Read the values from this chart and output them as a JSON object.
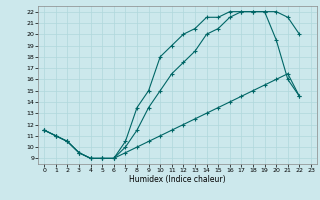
{
  "xlabel": "Humidex (Indice chaleur)",
  "bg_color": "#cce8ec",
  "line_color": "#006666",
  "xlim": [
    -0.5,
    23.5
  ],
  "ylim": [
    8.5,
    22.5
  ],
  "xticks": [
    0,
    1,
    2,
    3,
    4,
    5,
    6,
    7,
    8,
    9,
    10,
    11,
    12,
    13,
    14,
    15,
    16,
    17,
    18,
    19,
    20,
    21,
    22,
    23
  ],
  "yticks": [
    9,
    10,
    11,
    12,
    13,
    14,
    15,
    16,
    17,
    18,
    19,
    20,
    21,
    22
  ],
  "line1_x": [
    0,
    1,
    2,
    3,
    4,
    5,
    6,
    7,
    8,
    9,
    10,
    11,
    12,
    13,
    14,
    15,
    16,
    17,
    18,
    19,
    20,
    21,
    22
  ],
  "line1_y": [
    11.5,
    11.0,
    10.5,
    9.5,
    9.0,
    9.0,
    9.0,
    9.5,
    10.0,
    10.5,
    11.0,
    11.5,
    12.0,
    12.5,
    13.0,
    13.5,
    14.0,
    14.5,
    15.0,
    15.5,
    16.0,
    16.5,
    14.5
  ],
  "line2_x": [
    0,
    1,
    2,
    3,
    4,
    5,
    6,
    7,
    8,
    9,
    10,
    11,
    12,
    13,
    14,
    15,
    16,
    17,
    18,
    19,
    20,
    21,
    22
  ],
  "line2_y": [
    11.5,
    11.0,
    10.5,
    9.5,
    9.0,
    9.0,
    9.0,
    10.5,
    13.5,
    15.0,
    18.0,
    19.0,
    20.0,
    20.5,
    21.5,
    21.5,
    22.0,
    22.0,
    22.0,
    22.0,
    19.5,
    16.0,
    14.5
  ],
  "line3_x": [
    0,
    1,
    2,
    3,
    4,
    5,
    6,
    7,
    8,
    9,
    10,
    11,
    12,
    13,
    14,
    15,
    16,
    17,
    18,
    19,
    20,
    21,
    22
  ],
  "line3_y": [
    11.5,
    11.0,
    10.5,
    9.5,
    9.0,
    9.0,
    9.0,
    10.0,
    11.5,
    13.5,
    15.0,
    16.5,
    17.5,
    18.5,
    20.0,
    20.5,
    21.5,
    22.0,
    22.0,
    22.0,
    22.0,
    21.5,
    20.0
  ],
  "grid_color": "#b0d8dc",
  "spine_color": "#888888"
}
